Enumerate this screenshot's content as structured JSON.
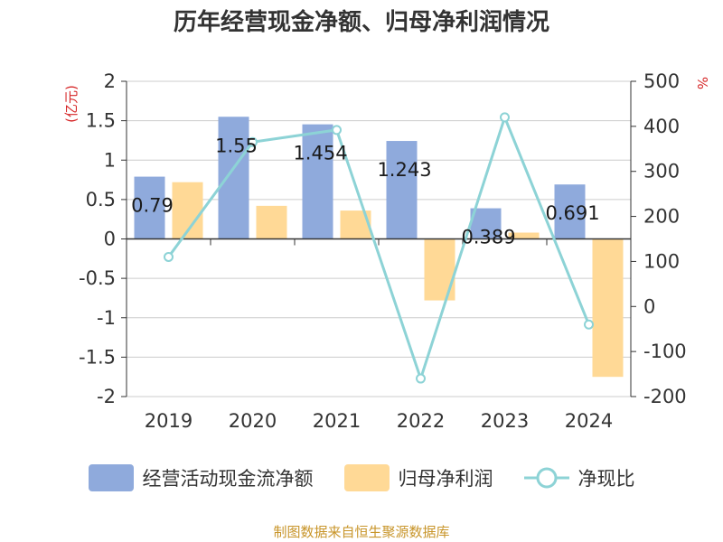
{
  "chart_data": {
    "type": "bar+line",
    "title": "历年经营现金净额、归母净利润情况",
    "categories": [
      "2019",
      "2020",
      "2021",
      "2022",
      "2023",
      "2024"
    ],
    "series": [
      {
        "name": "经营活动现金流净额",
        "type": "bar",
        "axis": "left",
        "values": [
          0.79,
          1.55,
          1.454,
          1.243,
          0.389,
          0.691
        ],
        "color": "#8faadc"
      },
      {
        "name": "归母净利润",
        "type": "bar",
        "axis": "left",
        "values": [
          0.72,
          0.42,
          0.36,
          -0.78,
          0.08,
          -1.75
        ],
        "color": "#ffd996"
      },
      {
        "name": "净现比",
        "type": "line",
        "axis": "right",
        "values": [
          110,
          365,
          392,
          -160,
          420,
          -40
        ],
        "color": "#8dd3d6"
      }
    ],
    "data_labels": [
      "0.79",
      "1.55",
      "1.454",
      "1.243",
      "0.389",
      "0.691"
    ],
    "y_left": {
      "label": "(亿元)",
      "min": -2,
      "max": 2,
      "ticks": [
        "-2",
        "-1.5",
        "-1",
        "-0.5",
        "0",
        "0.5",
        "1",
        "1.5",
        "2"
      ],
      "tick_values": [
        -2,
        -1.5,
        -1,
        -0.5,
        0,
        0.5,
        1,
        1.5,
        2
      ]
    },
    "y_right": {
      "label": "%",
      "min": -200,
      "max": 500,
      "ticks": [
        "-200",
        "-100",
        "0",
        "100",
        "200",
        "300",
        "400",
        "500"
      ],
      "tick_values": [
        -200,
        -100,
        0,
        100,
        200,
        300,
        400,
        500
      ]
    },
    "grid": true,
    "legend_position": "bottom",
    "colors": {
      "unit_label": "#d62728",
      "axis": "#333333",
      "grid": "#cccccc"
    }
  },
  "legend": {
    "bar1": "经营活动现金流净额",
    "bar2": "归母净利润",
    "line": "净现比"
  },
  "source": "制图数据来自恒生聚源数据库"
}
